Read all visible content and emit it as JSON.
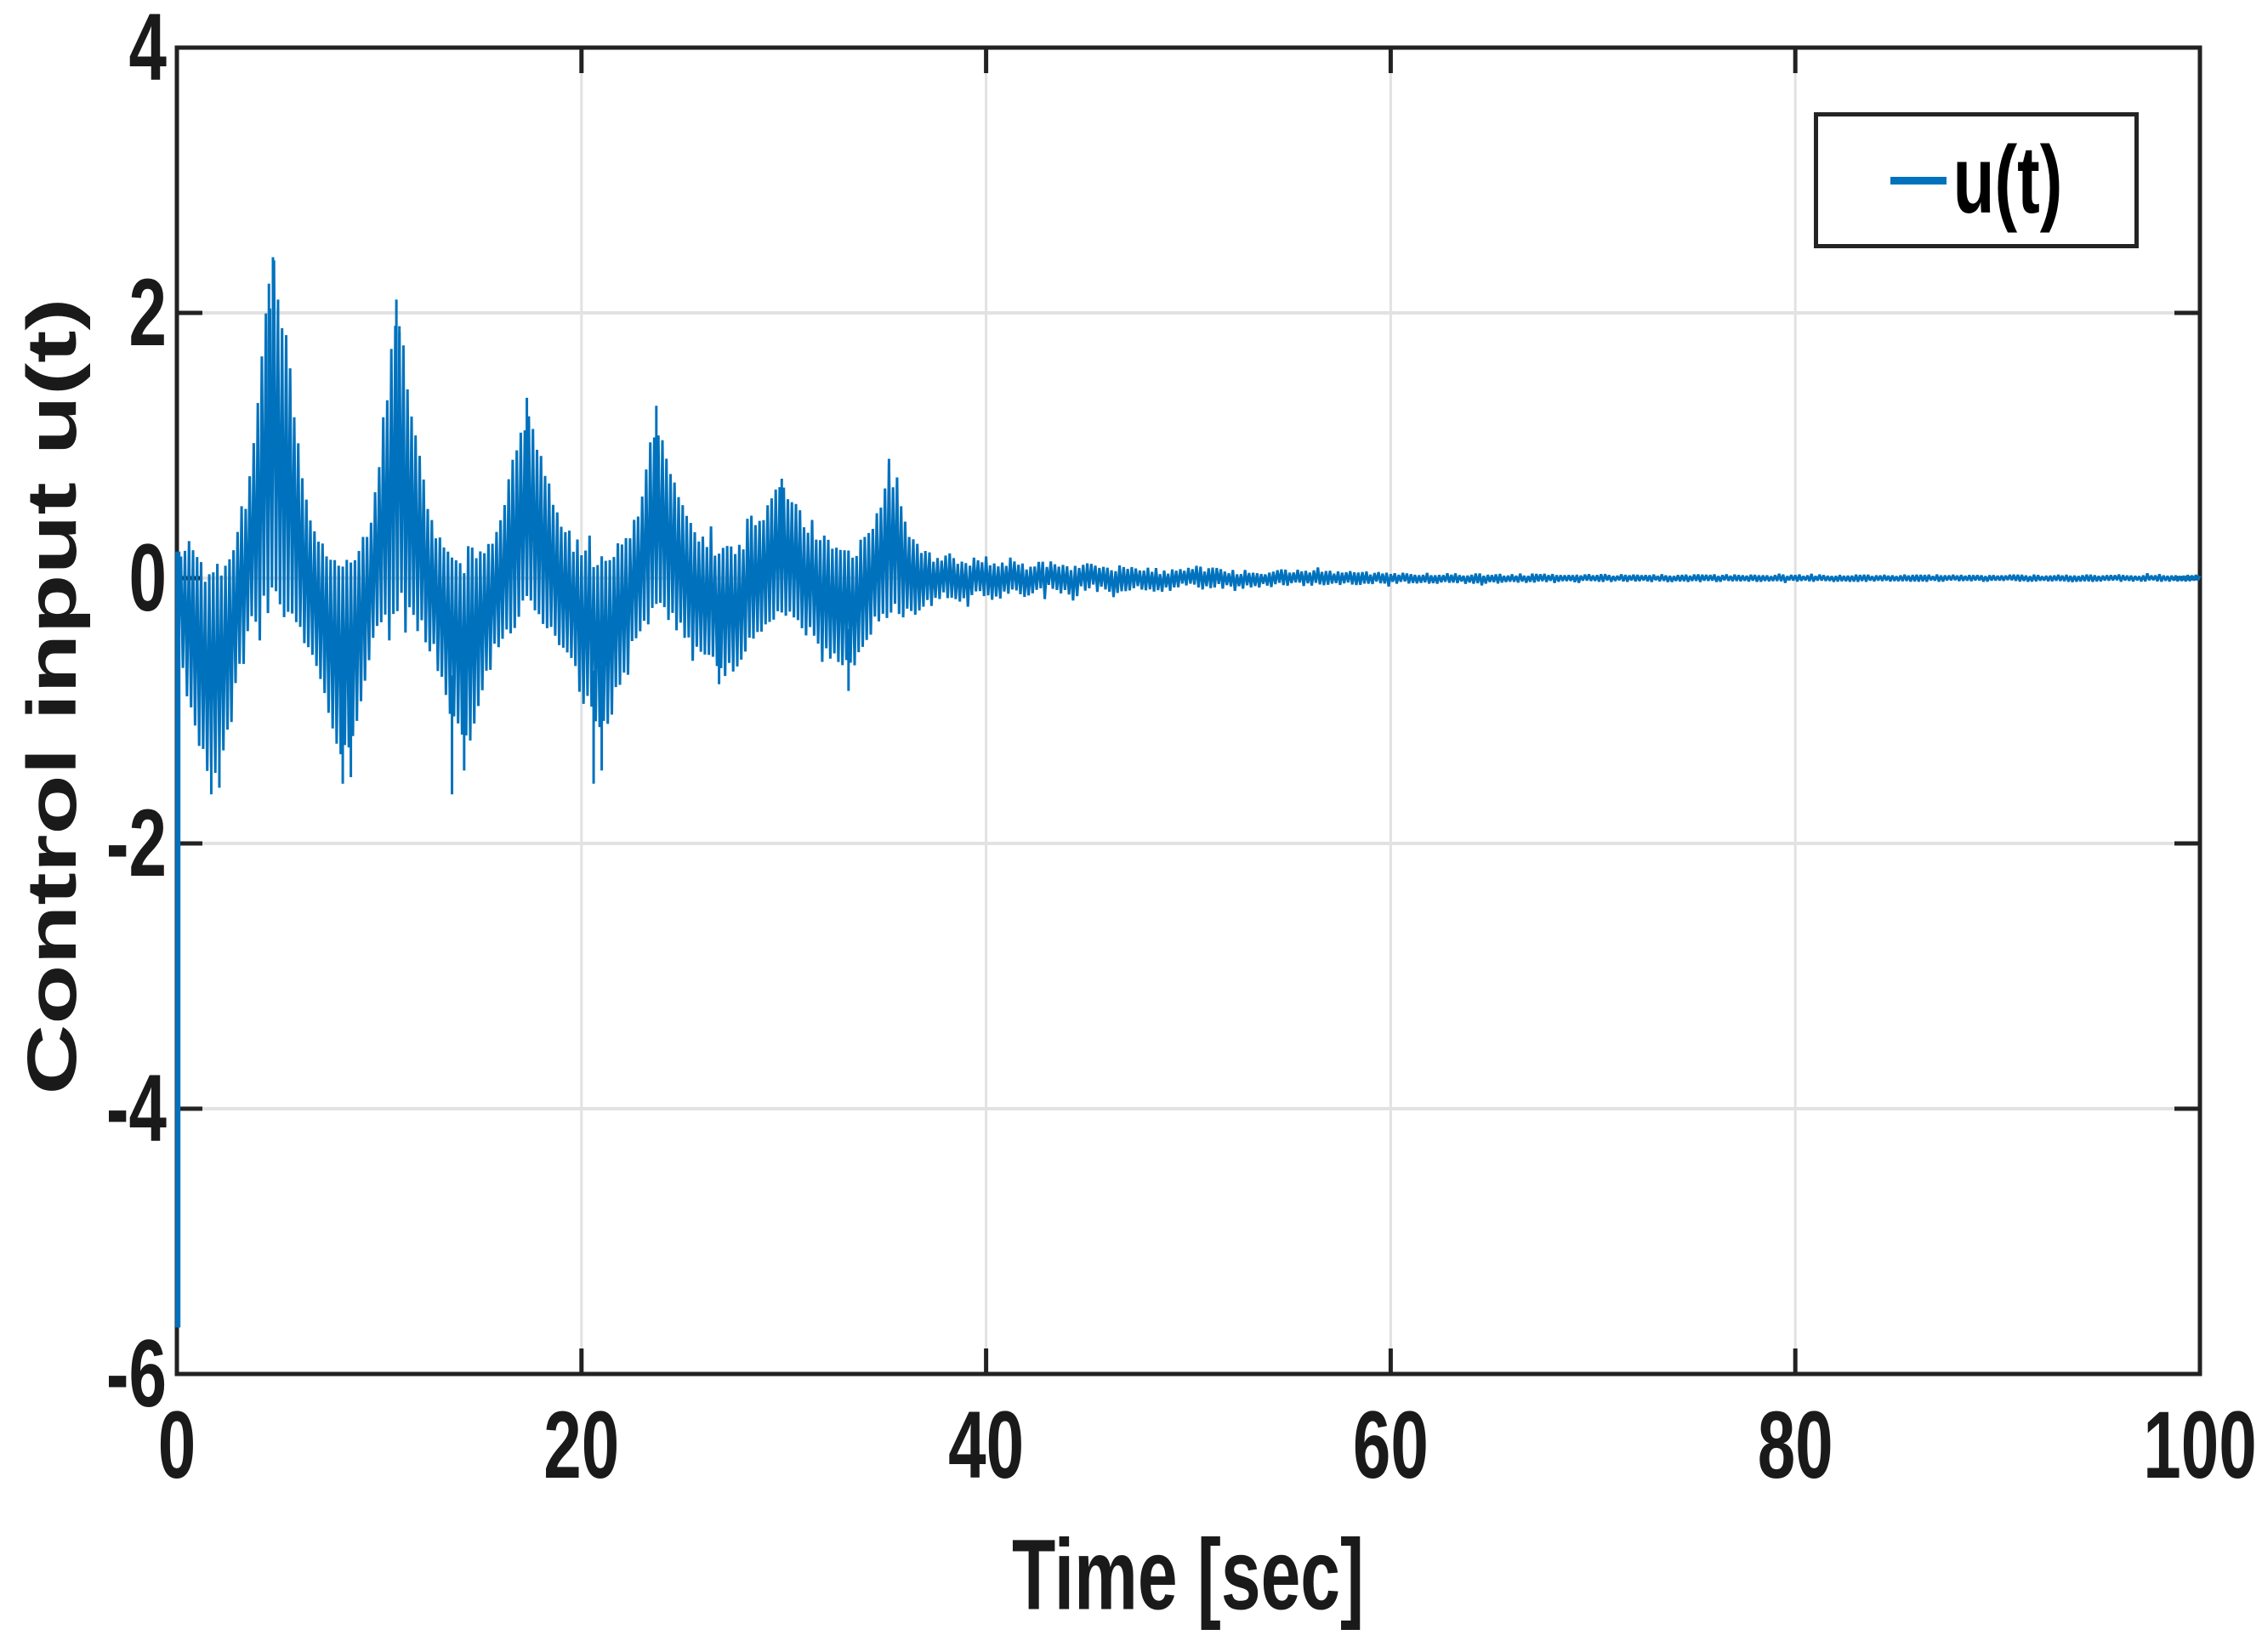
{
  "figure": {
    "background": "#ffffff",
    "colors": {
      "line": "#0072BD",
      "axis": "#222222",
      "grid": "#e2e2e2",
      "text": "#1a1a1a",
      "legend_border": "#242424",
      "legend_background": "#ffffff"
    }
  },
  "chart_data": {
    "type": "line",
    "title": "",
    "xlabel": "Time [sec]",
    "ylabel": "Control input u(t)",
    "xlim": [
      0,
      100
    ],
    "ylim": [
      -6,
      4
    ],
    "x_ticks": [
      0,
      20,
      40,
      60,
      80,
      100
    ],
    "y_ticks": [
      4,
      2,
      0,
      -2,
      -4,
      -6
    ],
    "grid": true,
    "legend": {
      "label": "u(t)",
      "position": "northeast"
    },
    "series": [
      {
        "name": "u(t)",
        "color": "#0072BD",
        "description": "High-frequency oscillatory control signal: initial spike to -5.65, amplitude-modulated bursts with period ~6.2 s decaying to ~0 after t=45 s",
        "initial_spike": {
          "t": 0.05,
          "min": -5.65,
          "max": 0.2
        },
        "burst_peaks": [
          [
            4.75,
            2.38
          ],
          [
            10.85,
            2.08
          ],
          [
            17.3,
            1.32
          ],
          [
            23.7,
            1.27
          ],
          [
            29.9,
            0.73
          ],
          [
            35.2,
            0.88
          ]
        ],
        "dip_minima": [
          [
            1.8,
            -1.57
          ],
          [
            8.2,
            -1.45
          ],
          [
            14.2,
            -1.32
          ],
          [
            21.0,
            -1.2
          ],
          [
            27.2,
            -0.77
          ],
          [
            33.3,
            -0.75
          ]
        ],
        "envelope": [
          [
            0.0,
            -0.3,
            0.2
          ],
          [
            0.3,
            -0.7,
            0.28
          ],
          [
            0.7,
            -1.0,
            0.33
          ],
          [
            1.0,
            -1.3,
            0.2
          ],
          [
            1.4,
            -1.5,
            0.14
          ],
          [
            1.8,
            -1.57,
            0.14
          ],
          [
            2.2,
            -1.48,
            0.2
          ],
          [
            2.6,
            -1.25,
            0.26
          ],
          [
            3.0,
            -0.8,
            0.35
          ],
          [
            3.4,
            -0.5,
            0.55
          ],
          [
            3.8,
            -0.4,
            1.1
          ],
          [
            4.2,
            -0.33,
            1.8
          ],
          [
            4.5,
            -0.3,
            2.15
          ],
          [
            4.75,
            -0.3,
            2.38
          ],
          [
            5.0,
            -0.3,
            2.25
          ],
          [
            5.3,
            -0.33,
            1.95
          ],
          [
            5.7,
            -0.38,
            1.5
          ],
          [
            6.1,
            -0.45,
            0.95
          ],
          [
            6.5,
            -0.55,
            0.55
          ],
          [
            6.9,
            -0.75,
            0.38
          ],
          [
            7.3,
            -1.0,
            0.26
          ],
          [
            7.8,
            -1.3,
            0.2
          ],
          [
            8.2,
            -1.45,
            0.2
          ],
          [
            8.6,
            -1.32,
            0.24
          ],
          [
            9.0,
            -1.05,
            0.3
          ],
          [
            9.4,
            -0.7,
            0.4
          ],
          [
            9.8,
            -0.5,
            0.7
          ],
          [
            10.2,
            -0.4,
            1.25
          ],
          [
            10.6,
            -0.32,
            1.8
          ],
          [
            10.85,
            -0.3,
            2.08
          ],
          [
            11.1,
            -0.3,
            1.9
          ],
          [
            11.5,
            -0.35,
            1.5
          ],
          [
            11.9,
            -0.4,
            1.05
          ],
          [
            12.3,
            -0.5,
            0.65
          ],
          [
            12.7,
            -0.62,
            0.45
          ],
          [
            13.2,
            -0.85,
            0.32
          ],
          [
            13.7,
            -1.1,
            0.24
          ],
          [
            14.2,
            -1.32,
            0.2
          ],
          [
            14.6,
            -1.2,
            0.24
          ],
          [
            15.1,
            -0.95,
            0.3
          ],
          [
            15.6,
            -0.65,
            0.38
          ],
          [
            16.1,
            -0.48,
            0.6
          ],
          [
            16.6,
            -0.4,
            0.95
          ],
          [
            17.0,
            -0.33,
            1.2
          ],
          [
            17.3,
            -0.3,
            1.32
          ],
          [
            17.7,
            -0.33,
            1.18
          ],
          [
            18.1,
            -0.38,
            0.9
          ],
          [
            18.6,
            -0.45,
            0.6
          ],
          [
            19.1,
            -0.55,
            0.42
          ],
          [
            19.6,
            -0.72,
            0.32
          ],
          [
            20.1,
            -0.95,
            0.25
          ],
          [
            20.6,
            -1.15,
            0.2
          ],
          [
            21.0,
            -1.2,
            0.2
          ],
          [
            21.5,
            -1.05,
            0.24
          ],
          [
            22.0,
            -0.8,
            0.3
          ],
          [
            22.5,
            -0.55,
            0.42
          ],
          [
            23.0,
            -0.42,
            0.7
          ],
          [
            23.4,
            -0.35,
            1.05
          ],
          [
            23.7,
            -0.32,
            1.27
          ],
          [
            24.1,
            -0.35,
            1.1
          ],
          [
            24.5,
            -0.4,
            0.85
          ],
          [
            25.0,
            -0.48,
            0.6
          ],
          [
            25.5,
            -0.55,
            0.42
          ],
          [
            26.1,
            -0.65,
            0.33
          ],
          [
            26.7,
            -0.74,
            0.28
          ],
          [
            27.2,
            -0.77,
            0.27
          ],
          [
            27.8,
            -0.68,
            0.3
          ],
          [
            28.4,
            -0.52,
            0.38
          ],
          [
            29.0,
            -0.4,
            0.55
          ],
          [
            29.5,
            -0.34,
            0.68
          ],
          [
            29.9,
            -0.32,
            0.73
          ],
          [
            30.4,
            -0.36,
            0.64
          ],
          [
            31.0,
            -0.42,
            0.48
          ],
          [
            31.6,
            -0.5,
            0.37
          ],
          [
            32.2,
            -0.6,
            0.3
          ],
          [
            32.8,
            -0.7,
            0.26
          ],
          [
            33.3,
            -0.75,
            0.26
          ],
          [
            33.9,
            -0.6,
            0.3
          ],
          [
            34.4,
            -0.42,
            0.45
          ],
          [
            34.9,
            -0.32,
            0.7
          ],
          [
            35.2,
            -0.3,
            0.88
          ],
          [
            35.6,
            -0.3,
            0.68
          ],
          [
            36.0,
            -0.32,
            0.45
          ],
          [
            36.4,
            -0.3,
            0.3
          ],
          [
            36.9,
            -0.25,
            0.22
          ],
          [
            37.5,
            -0.19,
            0.17
          ],
          [
            38.2,
            -0.15,
            0.19
          ],
          [
            38.9,
            -0.19,
            0.13
          ],
          [
            39.6,
            -0.13,
            0.17
          ],
          [
            40.4,
            -0.18,
            0.12
          ],
          [
            41.3,
            -0.11,
            0.16
          ],
          [
            42.2,
            -0.16,
            0.1
          ],
          [
            43.1,
            -0.1,
            0.14
          ],
          [
            44.1,
            -0.14,
            0.09
          ],
          [
            45.1,
            -0.09,
            0.13
          ],
          [
            46.2,
            -0.13,
            0.08
          ],
          [
            47.4,
            -0.08,
            0.11
          ],
          [
            48.7,
            -0.11,
            0.07
          ],
          [
            50.1,
            -0.07,
            0.1
          ],
          [
            51.9,
            -0.09,
            0.07
          ],
          [
            53.9,
            -0.07,
            0.07
          ],
          [
            56.4,
            -0.06,
            0.06
          ],
          [
            59.0,
            -0.05,
            0.05
          ],
          [
            62.0,
            -0.045,
            0.04
          ],
          [
            66.0,
            -0.04,
            0.035
          ],
          [
            70.0,
            -0.03,
            0.03
          ],
          [
            80.0,
            -0.027,
            0.027
          ],
          [
            100.0,
            -0.027,
            0.027
          ]
        ],
        "hair_spikes": [
          [
            4.75,
            2.42
          ],
          [
            4.55,
            2.22
          ],
          [
            5.0,
            2.1
          ],
          [
            10.85,
            2.1
          ],
          [
            11.0,
            1.9
          ],
          [
            17.3,
            1.36
          ],
          [
            23.7,
            1.3
          ],
          [
            29.9,
            0.75
          ],
          [
            35.2,
            0.9
          ],
          [
            1.7,
            -1.63
          ],
          [
            2.1,
            -1.58
          ],
          [
            8.2,
            -1.55
          ],
          [
            8.6,
            -1.5
          ],
          [
            13.6,
            -1.63
          ],
          [
            14.2,
            -1.45
          ],
          [
            20.6,
            -1.55
          ],
          [
            21.0,
            -1.45
          ],
          [
            26.8,
            -0.8
          ],
          [
            33.2,
            -0.85
          ]
        ]
      }
    ]
  }
}
